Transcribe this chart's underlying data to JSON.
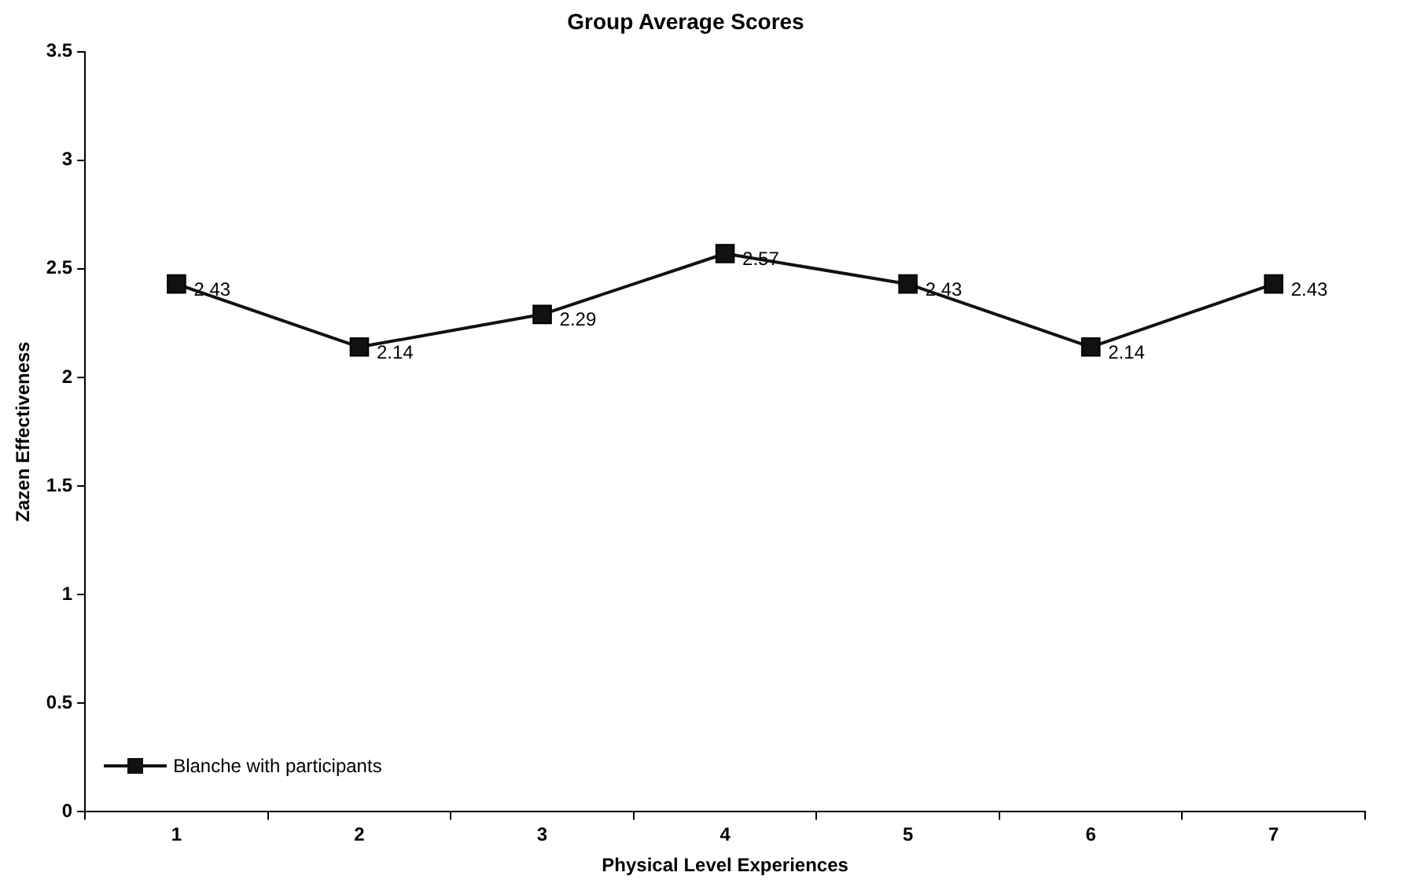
{
  "chart_data": {
    "type": "line",
    "title": "Group Average Scores",
    "xlabel": "Physical Level Experiences",
    "ylabel": "Zazen Effectiveness",
    "categories": [
      "1",
      "2",
      "3",
      "4",
      "5",
      "6",
      "7"
    ],
    "series": [
      {
        "name": "Blanche with participants",
        "color": "#111111",
        "values": [
          2.43,
          2.14,
          2.29,
          2.57,
          2.43,
          2.14,
          2.43
        ]
      }
    ],
    "ylim": [
      0,
      3.5
    ],
    "yticks": [
      0,
      0.5,
      1,
      1.5,
      2,
      2.5,
      3,
      3.5
    ],
    "grid": false,
    "legend": "bottom left",
    "marker": "square",
    "data_labels": true
  }
}
